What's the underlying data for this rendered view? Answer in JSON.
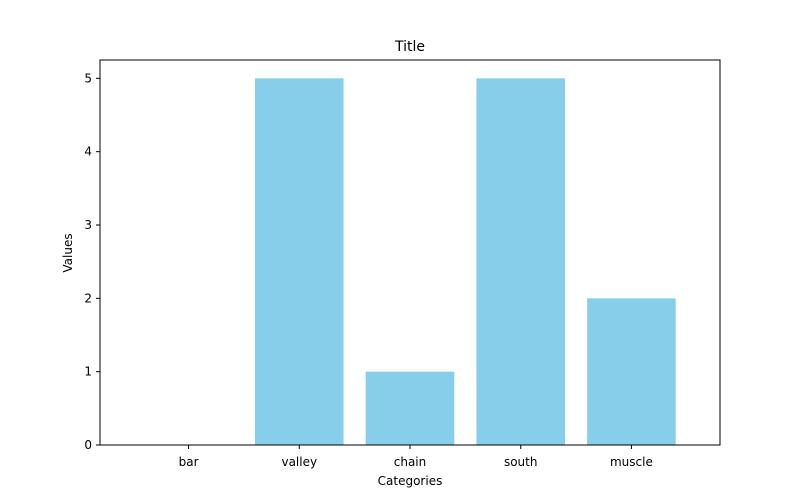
{
  "chart_data": {
    "type": "bar",
    "title": "Title",
    "xlabel": "Categories",
    "ylabel": "Values",
    "categories": [
      "bar",
      "valley",
      "chain",
      "south",
      "muscle"
    ],
    "values": [
      0,
      5,
      1,
      5,
      2
    ],
    "ylim": [
      0,
      5.25
    ],
    "yticks": [
      0,
      1,
      2,
      3,
      4,
      5
    ],
    "grid": false,
    "legend": "none",
    "bar_color": "#87CEEB",
    "axis_color": "#000000"
  }
}
